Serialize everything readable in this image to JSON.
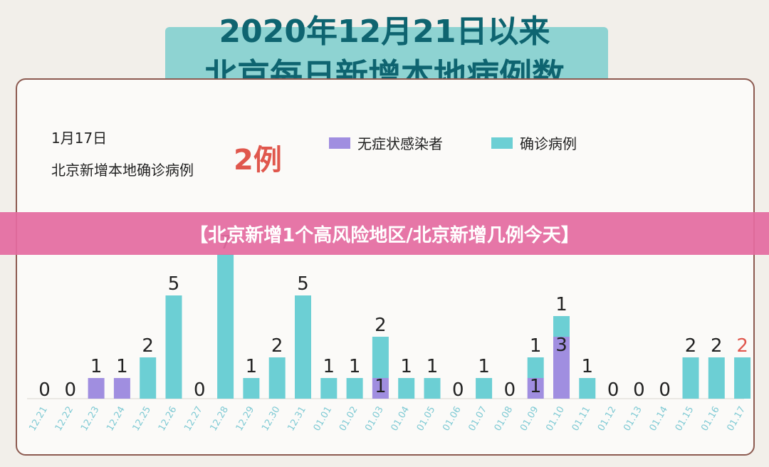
{
  "header": {
    "title_line1": "2020年12月21日以来",
    "title_line2": "北京每日新增本地病例数"
  },
  "info": {
    "date": "1月17日",
    "label": "北京新增本地确诊病例",
    "value": "2例"
  },
  "banner": {
    "text": "【北京新增1个高风险地区/北京新增几例今天】"
  },
  "colors": {
    "asymptomatic": "#a08ee0",
    "confirmed": "#6ccfd4",
    "highlight": "#e0574d",
    "label": "#222222",
    "tick": "#7fcad4"
  },
  "chart_data": {
    "type": "bar",
    "stacked": true,
    "categories": [
      "12.21",
      "12.22",
      "12.23",
      "12.24",
      "12.25",
      "12.26",
      "12.27",
      "12.28",
      "12.29",
      "12.30",
      "12.31",
      "01.01",
      "01.02",
      "01.03",
      "01.04",
      "01.05",
      "01.06",
      "01.07",
      "01.08",
      "01.09",
      "01.10",
      "01.11",
      "01.12",
      "01.13",
      "01.14",
      "01.15",
      "01.16",
      "01.17"
    ],
    "series": [
      {
        "name": "无症状感染者",
        "values": [
          0,
          0,
          1,
          1,
          0,
          0,
          0,
          0,
          0,
          0,
          0,
          0,
          0,
          1,
          0,
          0,
          0,
          0,
          0,
          1,
          3,
          0,
          0,
          0,
          0,
          0,
          0,
          0
        ]
      },
      {
        "name": "确诊病例",
        "values": [
          0,
          0,
          0,
          0,
          2,
          5,
          0,
          7,
          1,
          2,
          5,
          1,
          1,
          2,
          1,
          1,
          0,
          1,
          0,
          1,
          1,
          1,
          0,
          0,
          0,
          2,
          2,
          2
        ]
      }
    ],
    "ylim": [
      0,
      8
    ],
    "legend_position": "top-right",
    "highlight_last_label": true
  }
}
